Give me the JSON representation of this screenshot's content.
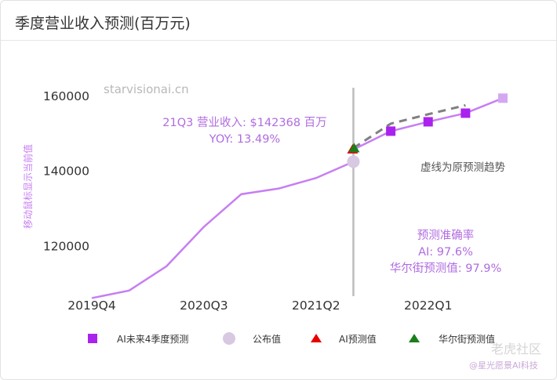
{
  "header": {
    "title": "季度营业收入预测(百万元)"
  },
  "watermarks": {
    "site": "starvisionai.cn",
    "community": "老虎社区",
    "author": "@星光愿景AI科技"
  },
  "annotations": {
    "tooltip_line1": "21Q3 营业收入: $142368 百万",
    "tooltip_line2": "YOY: 13.49%",
    "dashed_note": "虚线为原预测趋势",
    "acc_title": "预测准确率",
    "acc_ai": "AI: 97.6%",
    "acc_ws": "华尔街预测值: 97.9%"
  },
  "colors": {
    "line": "#c77ef2",
    "forecast": "#aa22ee",
    "forecast_last": "#d4a8f0",
    "published": "#d8c8e2",
    "ai_pred": "#e60000",
    "ws_pred": "#1a7f1a",
    "dashed": "#808080",
    "divider": "#bdbdbd",
    "annotation": "#b06ce0"
  },
  "chart_data": {
    "type": "line",
    "ylabel": "移动鼠标显示当前值",
    "ylim": [
      104000,
      165000
    ],
    "yticks": [
      120000,
      140000,
      160000
    ],
    "xticks": [
      {
        "label": "2019Q4",
        "x": 0
      },
      {
        "label": "2020Q3",
        "x": 3
      },
      {
        "label": "2021Q2",
        "x": 6
      },
      {
        "label": "2022Q1",
        "x": 9
      }
    ],
    "xlim": [
      0,
      11
    ],
    "series": [
      {
        "name": "公布值",
        "kind": "line",
        "points": [
          [
            0,
            106000
          ],
          [
            1,
            108000
          ],
          [
            2,
            114500
          ],
          [
            3,
            125000
          ],
          [
            4,
            133700
          ],
          [
            5,
            135200
          ],
          [
            6,
            138000
          ],
          [
            7,
            142368
          ]
        ]
      },
      {
        "name": "AI未来4季度预测",
        "kind": "squares",
        "points": [
          [
            8,
            150500
          ],
          [
            9,
            153000
          ],
          [
            10,
            155300
          ],
          [
            11,
            159300
          ]
        ]
      },
      {
        "name": "原预测趋势",
        "kind": "dashed",
        "points": [
          [
            7,
            146000
          ],
          [
            8,
            152500
          ],
          [
            9,
            155000
          ],
          [
            10,
            157400
          ]
        ]
      }
    ],
    "published_marker": [
      7,
      142368
    ],
    "ai_prediction": [
      7,
      145600
    ],
    "wallstreet_prediction": [
      7,
      145900
    ],
    "divider_x": 7,
    "legend": [
      "AI未来4季度预测",
      "公布值",
      "AI预测值",
      "华尔街预测值"
    ]
  }
}
